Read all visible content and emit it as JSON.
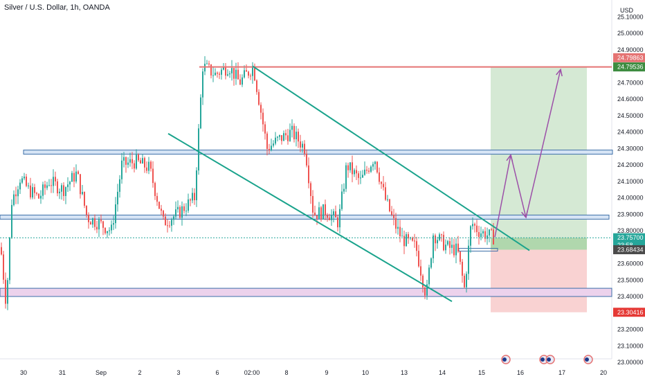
{
  "symbol_title": "Silver / U.S. Dollar, 1h, OANDA",
  "currency": "USD",
  "colors": {
    "up": "#26a69a",
    "down": "#ef5350",
    "channel": "#1aa38c",
    "zone_blue_fill": "#d6e4f5",
    "zone_blue_stroke": "#3d6fa8",
    "zone_pink_fill": "#ecd2ec",
    "target_fill": "#d3e8d2",
    "stop_fill": "#f9d0d0",
    "arrow": "#9c4fa8",
    "target_line": "#e57373",
    "current_price": "#26a69a"
  },
  "price_tags": {
    "target_top": "24.79863",
    "target": "24.79536",
    "current": "23.75700",
    "countdown": "23:58",
    "entry": "23.68434",
    "stop": "23.30416"
  },
  "chart_data": {
    "type": "candlestick",
    "y_axis": {
      "range": [
        23.0,
        25.2
      ],
      "ticks": [
        "25.10000",
        "25.00000",
        "24.90000",
        "24.70000",
        "24.60000",
        "24.50000",
        "24.40000",
        "24.30000",
        "24.20000",
        "24.10000",
        "24.00000",
        "23.90000",
        "23.80000",
        "23.60000",
        "23.50000",
        "23.40000",
        "23.20000",
        "23.10000",
        "23.00000"
      ]
    },
    "x_axis": {
      "labels": [
        "30",
        "31",
        "Sep",
        "2",
        "3",
        "6",
        "02:00",
        "8",
        "9",
        "10",
        "13",
        "14",
        "15",
        "16",
        "17",
        "20"
      ]
    },
    "price_path": [
      [
        0,
        23.7
      ],
      [
        8,
        23.35
      ],
      [
        16,
        23.98
      ],
      [
        28,
        24.12
      ],
      [
        40,
        24.05
      ],
      [
        55,
        24.0
      ],
      [
        70,
        24.1
      ],
      [
        90,
        24.05
      ],
      [
        110,
        24.15
      ],
      [
        125,
        23.88
      ],
      [
        140,
        23.85
      ],
      [
        160,
        23.8
      ],
      [
        175,
        24.2
      ],
      [
        195,
        24.22
      ],
      [
        215,
        24.18
      ],
      [
        235,
        23.85
      ],
      [
        255,
        23.9
      ],
      [
        280,
        24.0
      ],
      [
        292,
        24.8
      ],
      [
        310,
        24.75
      ],
      [
        330,
        24.8
      ],
      [
        345,
        24.7
      ],
      [
        365,
        24.8
      ],
      [
        375,
        24.55
      ],
      [
        385,
        24.3
      ],
      [
        400,
        24.35
      ],
      [
        420,
        24.4
      ],
      [
        440,
        24.3
      ],
      [
        452,
        23.9
      ],
      [
        470,
        23.92
      ],
      [
        488,
        23.85
      ],
      [
        500,
        24.2
      ],
      [
        520,
        24.1
      ],
      [
        540,
        24.25
      ],
      [
        555,
        24.0
      ],
      [
        568,
        23.85
      ],
      [
        580,
        23.75
      ],
      [
        600,
        23.7
      ],
      [
        615,
        23.4
      ],
      [
        625,
        23.78
      ],
      [
        645,
        23.7
      ],
      [
        660,
        23.68
      ],
      [
        670,
        23.45
      ],
      [
        680,
        23.85
      ],
      [
        690,
        23.8
      ],
      [
        705,
        23.77
      ],
      [
        714,
        23.757
      ]
    ],
    "levels": {
      "target": 24.79536,
      "entry": 23.68434,
      "stop": 23.30416,
      "current": 23.757,
      "resistance_zone": [
        24.265,
        24.29
      ],
      "mid_zone": [
        23.87,
        23.895
      ],
      "support_zone": [
        23.4,
        23.45
      ]
    },
    "channel_lines": [
      {
        "from": [
          365,
          24.8
        ],
        "to": [
          765,
          23.68
        ]
      },
      {
        "from": [
          243,
          24.39
        ],
        "to": [
          653,
          23.37
        ]
      }
    ],
    "projection_path": [
      [
        715,
        23.76
      ],
      [
        738,
        24.26
      ],
      [
        760,
        23.88
      ],
      [
        810,
        24.78
      ]
    ],
    "grid": false
  }
}
